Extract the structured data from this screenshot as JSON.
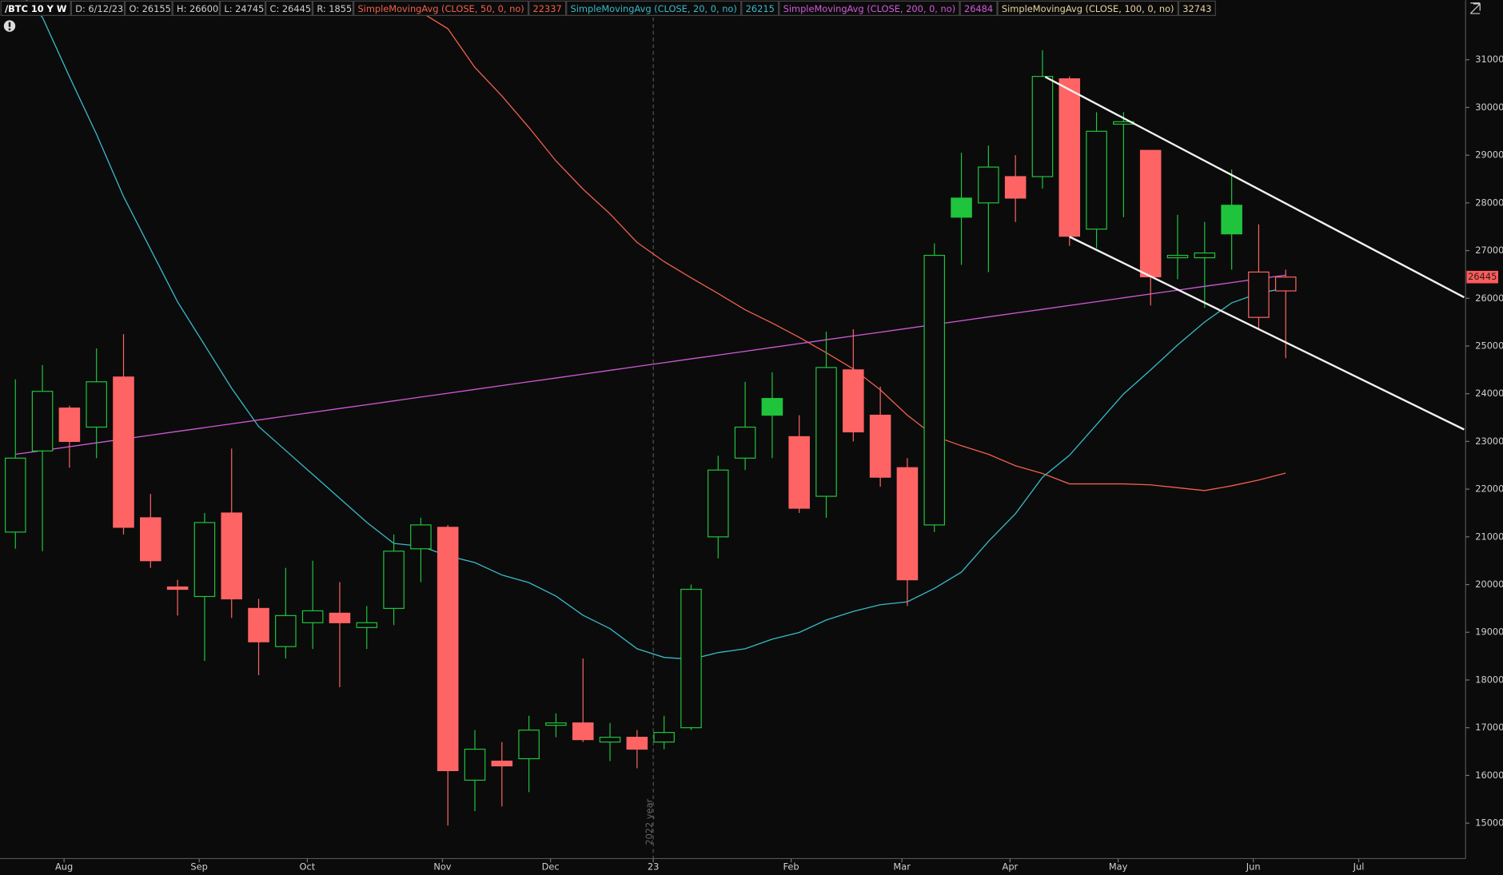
{
  "chart_data": {
    "type": "candlestick",
    "symbol": "/BTC 10 Y W",
    "quote": [
      {
        "label": "D:",
        "value": "6/12/23"
      },
      {
        "label": "O:",
        "value": 26155
      },
      {
        "label": "H:",
        "value": 26600
      },
      {
        "label": "L:",
        "value": 24745
      },
      {
        "label": "C:",
        "value": 26445
      },
      {
        "label": "R:",
        "value": 1855
      }
    ],
    "studies": [
      {
        "name": "SimpleMovingAvg (CLOSE, 50, 0, no)",
        "value": 22337,
        "color": "#f0604d",
        "values": [
          null,
          null,
          null,
          null,
          null,
          null,
          null,
          null,
          null,
          null,
          null,
          null,
          null,
          null,
          null,
          32000,
          31650,
          30840,
          30240,
          29580,
          28880,
          28290,
          27770,
          27170,
          26770,
          26430,
          26100,
          25760,
          25480,
          25180,
          24860,
          24520,
          24080,
          23550,
          23110,
          22910,
          22730,
          22490,
          22330,
          22110,
          22110,
          22110,
          22090,
          22030,
          21970,
          22070,
          22190,
          22337
        ]
      },
      {
        "name": "SimpleMovingAvg (CLOSE, 20, 0, no)",
        "value": 26215,
        "color": "#38b9c9",
        "values": [
          32500,
          31887,
          30642,
          29438,
          28133,
          27028,
          25924,
          25020,
          24116,
          23313,
          22811,
          22309,
          21807,
          21305,
          20863,
          20803,
          20602,
          20462,
          20201,
          20040,
          19759,
          19357,
          19076,
          18655,
          18474,
          18434,
          18574,
          18655,
          18855,
          18996,
          19257,
          19438,
          19578,
          19639,
          19920,
          20261,
          20904,
          21486,
          22249,
          22711,
          23353,
          23996,
          24498,
          25020,
          25502,
          25904,
          26104,
          26215
        ]
      },
      {
        "name": "SimpleMovingAvg (CLOSE, 200, 0, no)",
        "value": 26484,
        "color": "#d05ad8",
        "values": [
          22730,
          22810,
          22890,
          22970,
          23050,
          23130,
          23210,
          23290,
          23370,
          23450,
          23530,
          23610,
          23690,
          23770,
          23850,
          23930,
          24010,
          24090,
          24170,
          24250,
          24330,
          24410,
          24490,
          24570,
          24650,
          24730,
          24810,
          24890,
          24970,
          25050,
          25130,
          25210,
          25290,
          25370,
          25450,
          25530,
          25610,
          25690,
          25770,
          25850,
          25930,
          26010,
          26090,
          26170,
          26250,
          26330,
          26410,
          26484
        ]
      },
      {
        "name": "SimpleMovingAvg (CLOSE, 100, 0, no)",
        "value": 32743,
        "color": "#e8d3a0"
      }
    ],
    "open": [
      21100,
      22800,
      23700,
      23300,
      24350,
      21400,
      19950,
      19750,
      21500,
      19500,
      18700,
      19200,
      19400,
      19100,
      19500,
      20750,
      21200,
      15900,
      16300,
      16350,
      17050,
      17100,
      16700,
      16800,
      16700,
      17000,
      21000,
      22650,
      23900,
      23100,
      21850,
      24500,
      23550,
      22450,
      21250,
      28100,
      28000,
      28550,
      28550,
      30600,
      27450,
      29650,
      29100,
      26850,
      26850,
      27950,
      25600,
      26155
    ],
    "high": [
      24300,
      24600,
      23750,
      24950,
      25250,
      21900,
      20100,
      21500,
      22850,
      19700,
      20350,
      20500,
      20050,
      19550,
      21050,
      21400,
      21250,
      16950,
      16700,
      17250,
      17300,
      18450,
      17100,
      16950,
      17250,
      20000,
      22700,
      24250,
      24450,
      23550,
      25300,
      25350,
      24150,
      22650,
      27150,
      29050,
      29200,
      29000,
      31200,
      30650,
      29900,
      29900,
      29100,
      27750,
      27600,
      28700,
      27550,
      26600
    ],
    "low": [
      20750,
      20700,
      22450,
      22650,
      21050,
      20350,
      19350,
      18400,
      19300,
      18100,
      18450,
      18650,
      17850,
      18650,
      19150,
      20050,
      14950,
      15250,
      15350,
      15650,
      16800,
      16700,
      16300,
      16150,
      16550,
      16950,
      20550,
      22400,
      22650,
      21500,
      21400,
      23000,
      22050,
      19550,
      21100,
      26700,
      26550,
      27600,
      28300,
      27100,
      27050,
      27700,
      25850,
      26400,
      25800,
      26600,
      25350,
      24745
    ],
    "close": [
      22650,
      24050,
      23000,
      24250,
      21200,
      20500,
      19900,
      21300,
      19700,
      18800,
      19350,
      19450,
      19200,
      19200,
      20700,
      21250,
      16100,
      16550,
      16200,
      16950,
      17100,
      16750,
      16800,
      16550,
      16900,
      19900,
      22400,
      23300,
      23550,
      21600,
      24550,
      23200,
      22250,
      20100,
      26900,
      27700,
      28750,
      28100,
      30650,
      27300,
      29500,
      29700,
      26450,
      26900,
      26950,
      27350,
      26550,
      26445
    ],
    "up_color": "#1fc43c",
    "down_color": "#ff6464",
    "xlim": [
      -0.57,
      53.62
    ],
    "xticks": [
      {
        "value": 1.8,
        "label": "Aug"
      },
      {
        "value": 6.8,
        "label": "Sep"
      },
      {
        "value": 10.8,
        "label": "Oct"
      },
      {
        "value": 15.8,
        "label": "Nov"
      },
      {
        "value": 19.8,
        "label": "Dec"
      },
      {
        "value": 23.6,
        "label": "23"
      },
      {
        "value": 28.7,
        "label": "Feb"
      },
      {
        "value": 32.8,
        "label": "Mar"
      },
      {
        "value": 36.8,
        "label": "Apr"
      },
      {
        "value": 40.8,
        "label": "May"
      },
      {
        "value": 45.8,
        "label": "Jun"
      },
      {
        "value": 49.7,
        "label": "Jul"
      }
    ],
    "ylim": [
      14257,
      32249
    ],
    "yticks": [
      15000,
      16000,
      17000,
      18000,
      19000,
      20000,
      21000,
      22000,
      23000,
      24000,
      25000,
      26000,
      27000,
      28000,
      29000,
      30000,
      31000
    ],
    "annotations": [
      {
        "text": "2022 year",
        "x": 23.6
      }
    ],
    "trendlines": [
      {
        "x": [
          38.1,
          53.6
        ],
        "y": [
          30640,
          26020
        ]
      },
      {
        "x": [
          39,
          53.6
        ],
        "y": [
          27290,
          23250
        ]
      }
    ]
  }
}
